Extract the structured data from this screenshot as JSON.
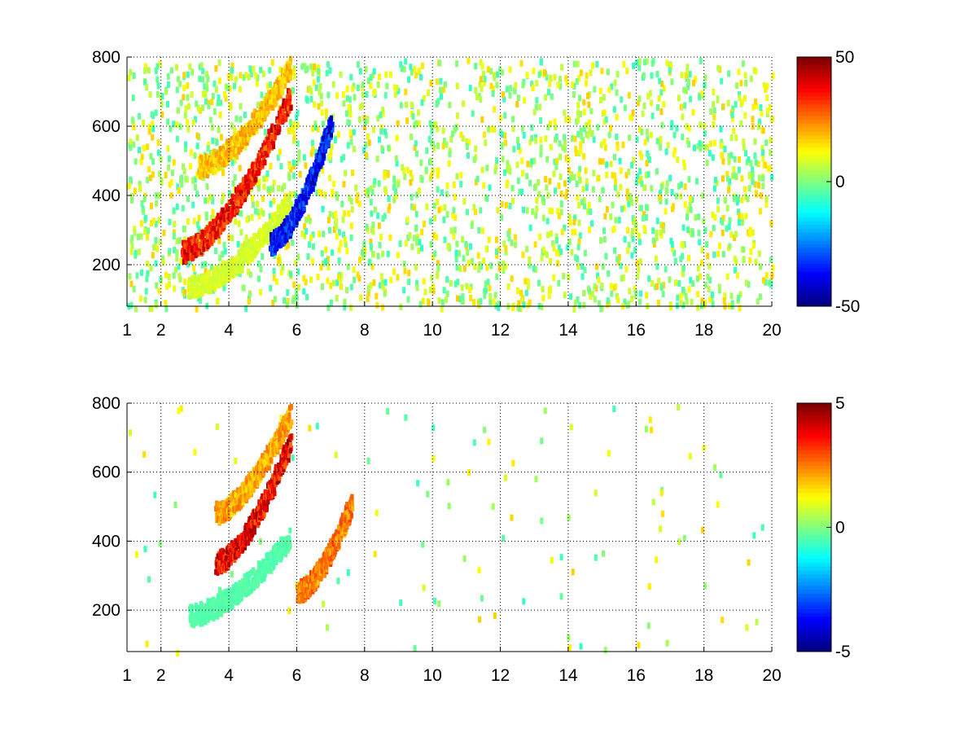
{
  "chart_data": [
    {
      "type": "heatmap",
      "title": "",
      "xlabel": "",
      "ylabel": "",
      "xlim": [
        1,
        20
      ],
      "ylim": [
        80,
        800
      ],
      "x_ticks": [
        1,
        2,
        4,
        6,
        8,
        10,
        12,
        14,
        16,
        18,
        20
      ],
      "y_ticks": [
        200,
        400,
        600,
        800
      ],
      "grid": true,
      "colormap": "jet",
      "colorbar": {
        "min": -50,
        "max": 50,
        "ticks": [
          -50,
          0,
          50
        ]
      },
      "features": [
        {
          "name": "upper-band",
          "x_start": 3.1,
          "x_end": 5.8,
          "y_start": 490,
          "y_end": 780,
          "value": 22
        },
        {
          "name": "main-band",
          "x_start": 2.6,
          "x_end": 5.8,
          "y_start": 245,
          "y_end": 700,
          "value": 42
        },
        {
          "name": "lower-band",
          "x_start": 2.8,
          "x_end": 5.8,
          "y_start": 140,
          "y_end": 390,
          "value": 10
        },
        {
          "name": "negative-region",
          "x_start": 5.2,
          "x_end": 7.0,
          "y_start": 270,
          "y_end": 620,
          "value": -42
        }
      ]
    },
    {
      "type": "heatmap",
      "title": "",
      "xlabel": "",
      "ylabel": "",
      "xlim": [
        1,
        20
      ],
      "ylim": [
        80,
        800
      ],
      "x_ticks": [
        1,
        2,
        4,
        6,
        8,
        10,
        12,
        14,
        16,
        18,
        20
      ],
      "y_ticks": [
        200,
        400,
        600,
        800
      ],
      "grid": true,
      "colormap": "jet",
      "colorbar": {
        "min": -5,
        "max": 5,
        "ticks": [
          -5,
          0,
          5
        ]
      },
      "features": [
        {
          "name": "upper-band",
          "x_start": 3.6,
          "x_end": 5.8,
          "y_start": 490,
          "y_end": 780,
          "value": 2.5
        },
        {
          "name": "main-band",
          "x_start": 3.6,
          "x_end": 5.8,
          "y_start": 345,
          "y_end": 700,
          "value": 4.5
        },
        {
          "name": "lower-band",
          "x_start": 2.8,
          "x_end": 5.8,
          "y_start": 190,
          "y_end": 420,
          "value": -0.5
        },
        {
          "name": "right-blob",
          "x_start": 6.0,
          "x_end": 7.6,
          "y_start": 260,
          "y_end": 520,
          "value": 3.0
        }
      ]
    }
  ]
}
